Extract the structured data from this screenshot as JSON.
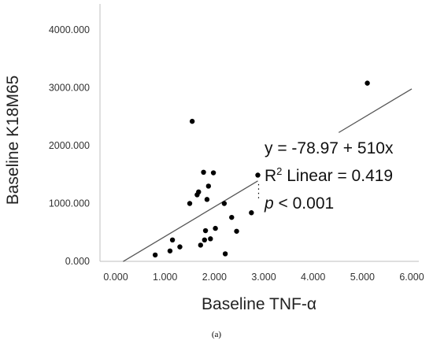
{
  "chart_data": {
    "type": "scatter",
    "xlabel": "Baseline TNF-α",
    "ylabel": "Baseline K18M65",
    "xlim": [
      0,
      6
    ],
    "ylim": [
      0,
      4000
    ],
    "x_ticks": [
      "0.000",
      "1.000",
      "2.000",
      "3.000",
      "4.000",
      "5.000",
      "6.000"
    ],
    "y_ticks": [
      "0.000",
      "1000.000",
      "2000.000",
      "3000.000",
      "4000.000"
    ],
    "grid": false,
    "points": [
      {
        "x": 0.8,
        "y": 110
      },
      {
        "x": 1.1,
        "y": 180
      },
      {
        "x": 1.15,
        "y": 370
      },
      {
        "x": 1.3,
        "y": 250
      },
      {
        "x": 1.5,
        "y": 1000
      },
      {
        "x": 1.55,
        "y": 2420
      },
      {
        "x": 1.65,
        "y": 1150
      },
      {
        "x": 1.68,
        "y": 1200
      },
      {
        "x": 1.72,
        "y": 280
      },
      {
        "x": 1.78,
        "y": 1540
      },
      {
        "x": 1.8,
        "y": 370
      },
      {
        "x": 1.82,
        "y": 530
      },
      {
        "x": 1.85,
        "y": 1070
      },
      {
        "x": 1.88,
        "y": 1300
      },
      {
        "x": 1.92,
        "y": 390
      },
      {
        "x": 1.98,
        "y": 1530
      },
      {
        "x": 2.02,
        "y": 570
      },
      {
        "x": 2.2,
        "y": 1000
      },
      {
        "x": 2.22,
        "y": 130
      },
      {
        "x": 2.35,
        "y": 760
      },
      {
        "x": 2.45,
        "y": 520
      },
      {
        "x": 2.75,
        "y": 840
      },
      {
        "x": 2.88,
        "y": 1490
      },
      {
        "x": 5.1,
        "y": 3080
      }
    ],
    "fit_line": {
      "intercept": -78.97,
      "slope": 510,
      "x_range": [
        0.15,
        6.0
      ],
      "gap_x": [
        2.88,
        4.52
      ]
    },
    "annotations": {
      "equation": "y = -78.97 + 510x",
      "r2_prefix": "R",
      "r2_sup": "2",
      "r2_suffix": " Linear = 0.419",
      "p_symbol": "p",
      "p_value": " < 0.001"
    },
    "caption": "(a)",
    "colors": {
      "points": "#000000",
      "line": "#555555",
      "axis": "#bfbfbf",
      "text": "#222222"
    }
  }
}
